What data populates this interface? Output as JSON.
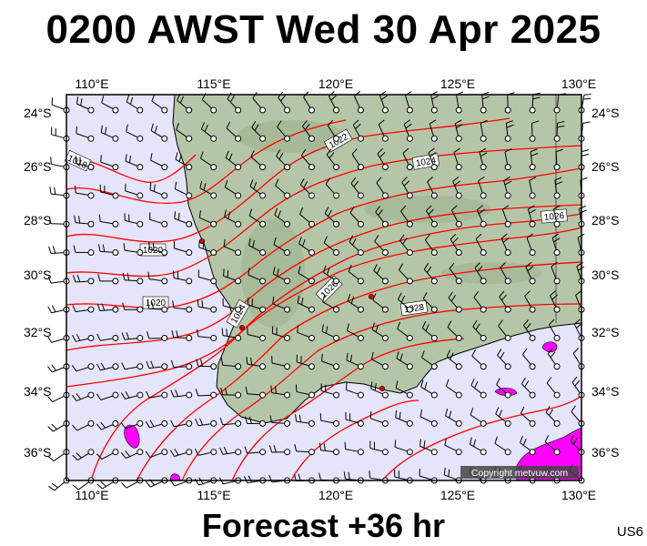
{
  "header": {
    "title": "0200 AWST Wed 30 Apr 2025"
  },
  "footer": {
    "forecast": "Forecast +36 hr",
    "code": "US6"
  },
  "map": {
    "credit": "Copyright metvuw.com",
    "lon_ticks": [
      "110°E",
      "115°E",
      "120°E",
      "125°E",
      "130°E"
    ],
    "lat_ticks": [
      "24°S",
      "26°S",
      "28°S",
      "30°S",
      "32°S",
      "34°S",
      "36°S"
    ],
    "isobar_labels": [
      "1018",
      "1020",
      "1022",
      "1024",
      "1026",
      "1028"
    ],
    "colors": {
      "ocean": "#e4e4fb",
      "land": "#b5c6a8",
      "isobar": "#ff0000",
      "rain": "#ff00ff",
      "barb": "#000000"
    }
  }
}
